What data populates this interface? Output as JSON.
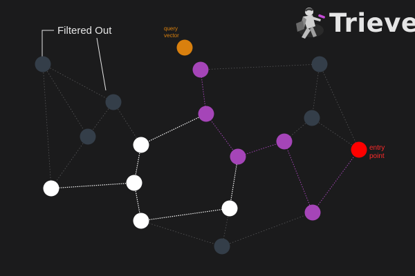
{
  "brand": {
    "name": "Trieve",
    "logo_icon": "trieve-hiker-icon"
  },
  "labels": {
    "filtered_out": "Filtered Out",
    "query_vector_line1": "query",
    "query_vector_line2": "vector",
    "entry_point_line1": "entry",
    "entry_point_line2": "point"
  },
  "colors": {
    "background": "#1b1b1c",
    "filtered_node": "#343e49",
    "path_node": "#a545b8",
    "result_node": "#ffffff",
    "query_node": "#d9800e",
    "entry_node": "#ff0000",
    "query_label": "#d9800e",
    "entry_label": "#ff2a2a",
    "filtered_label": "#e6e6e6"
  },
  "graph": {
    "nodes": [
      {
        "id": "f1",
        "kind": "filtered"
      },
      {
        "id": "f2",
        "kind": "filtered"
      },
      {
        "id": "f3",
        "kind": "filtered"
      },
      {
        "id": "f4",
        "kind": "filtered"
      },
      {
        "id": "f5",
        "kind": "filtered"
      },
      {
        "id": "f6",
        "kind": "filtered"
      },
      {
        "id": "q",
        "kind": "query"
      },
      {
        "id": "p1",
        "kind": "path"
      },
      {
        "id": "p2",
        "kind": "path"
      },
      {
        "id": "p3",
        "kind": "path"
      },
      {
        "id": "p4",
        "kind": "path"
      },
      {
        "id": "p5",
        "kind": "path"
      },
      {
        "id": "e",
        "kind": "entry"
      },
      {
        "id": "w1",
        "kind": "result"
      },
      {
        "id": "w2",
        "kind": "result"
      },
      {
        "id": "w3",
        "kind": "result"
      },
      {
        "id": "w4",
        "kind": "result"
      },
      {
        "id": "w5",
        "kind": "result"
      }
    ],
    "edges": [
      {
        "from": "f1",
        "to": "f2",
        "kind": "plain"
      },
      {
        "from": "f1",
        "to": "f3",
        "kind": "plain"
      },
      {
        "from": "f1",
        "to": "w1",
        "kind": "plain"
      },
      {
        "from": "f2",
        "to": "f3",
        "kind": "plain"
      },
      {
        "from": "f2",
        "to": "w2",
        "kind": "plain"
      },
      {
        "from": "f3",
        "to": "w1",
        "kind": "plain"
      },
      {
        "from": "p1",
        "to": "f4",
        "kind": "plain"
      },
      {
        "from": "f4",
        "to": "f5",
        "kind": "plain"
      },
      {
        "from": "f4",
        "to": "e",
        "kind": "plain"
      },
      {
        "from": "f5",
        "to": "e",
        "kind": "plain"
      },
      {
        "from": "f5",
        "to": "p4",
        "kind": "plain"
      },
      {
        "from": "w4",
        "to": "f6",
        "kind": "plain"
      },
      {
        "from": "w5",
        "to": "f6",
        "kind": "plain"
      },
      {
        "from": "f6",
        "to": "p5",
        "kind": "plain"
      },
      {
        "from": "p1",
        "to": "p2",
        "kind": "path"
      },
      {
        "from": "p2",
        "to": "p3",
        "kind": "path"
      },
      {
        "from": "p3",
        "to": "p4",
        "kind": "path"
      },
      {
        "from": "p4",
        "to": "p5",
        "kind": "path"
      },
      {
        "from": "p5",
        "to": "e",
        "kind": "path"
      },
      {
        "from": "p2",
        "to": "w2",
        "kind": "result"
      },
      {
        "from": "w2",
        "to": "w3",
        "kind": "result"
      },
      {
        "from": "w3",
        "to": "w1",
        "kind": "result"
      },
      {
        "from": "w3",
        "to": "w4",
        "kind": "result"
      },
      {
        "from": "w4",
        "to": "w5",
        "kind": "result"
      },
      {
        "from": "w5",
        "to": "p3",
        "kind": "result"
      }
    ]
  }
}
